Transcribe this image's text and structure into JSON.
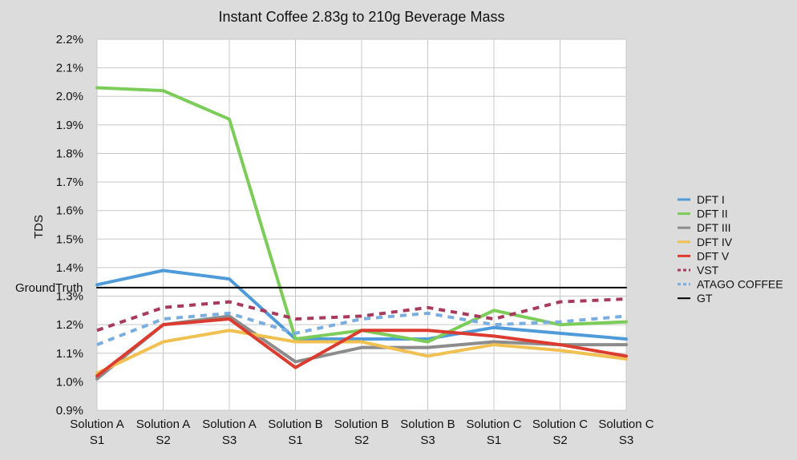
{
  "chart_data": {
    "type": "line",
    "title": "Instant Coffee 2.83g to 210g Beverage Mass",
    "xlabel": "",
    "ylabel": "TDS",
    "ylim": [
      0.9,
      2.2
    ],
    "yticks": [
      0.9,
      1.0,
      1.1,
      1.2,
      1.3,
      1.4,
      1.5,
      1.6,
      1.7,
      1.8,
      1.9,
      2.0,
      2.1,
      2.2
    ],
    "ytick_labels": [
      "0.9%",
      "1.0%",
      "1.1%",
      "1.2%",
      "1.3%",
      "1.4%",
      "1.5%",
      "1.6%",
      "1.7%",
      "1.8%",
      "1.9%",
      "2.0%",
      "2.1%",
      "2.2%"
    ],
    "categories": [
      [
        "Solution A",
        "S1"
      ],
      [
        "Solution A",
        "S2"
      ],
      [
        "Solution A",
        "S3"
      ],
      [
        "Solution B",
        "S1"
      ],
      [
        "Solution B",
        "S2"
      ],
      [
        "Solution B",
        "S3"
      ],
      [
        "Solution C",
        "S1"
      ],
      [
        "Solution C",
        "S2"
      ],
      [
        "Solution C",
        "S3"
      ]
    ],
    "grid": true,
    "legend_position": "right",
    "series": [
      {
        "name": "DFT I",
        "color": "#4f9ad8",
        "dash": "solid",
        "values": [
          1.34,
          1.39,
          1.36,
          1.15,
          1.15,
          1.15,
          1.19,
          1.17,
          1.15
        ]
      },
      {
        "name": "DFT II",
        "color": "#7ccc5a",
        "dash": "solid",
        "values": [
          2.03,
          2.02,
          1.92,
          1.15,
          1.18,
          1.14,
          1.25,
          1.2,
          1.21
        ]
      },
      {
        "name": "DFT  III",
        "color": "#8c8c8c",
        "dash": "solid",
        "values": [
          1.01,
          1.2,
          1.23,
          1.07,
          1.12,
          1.12,
          1.14,
          1.13,
          1.13
        ]
      },
      {
        "name": "DFT  IV",
        "color": "#f0c050",
        "dash": "solid",
        "values": [
          1.03,
          1.14,
          1.18,
          1.14,
          1.14,
          1.09,
          1.13,
          1.11,
          1.08
        ]
      },
      {
        "name": "DFT V",
        "color": "#dc3c30",
        "dash": "solid",
        "values": [
          1.02,
          1.2,
          1.22,
          1.05,
          1.18,
          1.18,
          1.16,
          1.13,
          1.09
        ]
      },
      {
        "name": "VST",
        "color": "#a83a5c",
        "dash": "dashed",
        "values": [
          1.18,
          1.26,
          1.28,
          1.22,
          1.23,
          1.26,
          1.22,
          1.28,
          1.29
        ]
      },
      {
        "name": "ATAGO COFFEE",
        "color": "#7aaee0",
        "dash": "dashed",
        "values": [
          1.13,
          1.22,
          1.24,
          1.17,
          1.22,
          1.24,
          1.2,
          1.21,
          1.23
        ]
      },
      {
        "name": "GT",
        "color": "#000000",
        "dash": "solid",
        "values": [
          1.33,
          1.33,
          1.33,
          1.33,
          1.33,
          1.33,
          1.33,
          1.33,
          1.33
        ]
      }
    ],
    "annotations": [
      {
        "text": "GroundTruth",
        "y": 1.33
      }
    ]
  }
}
